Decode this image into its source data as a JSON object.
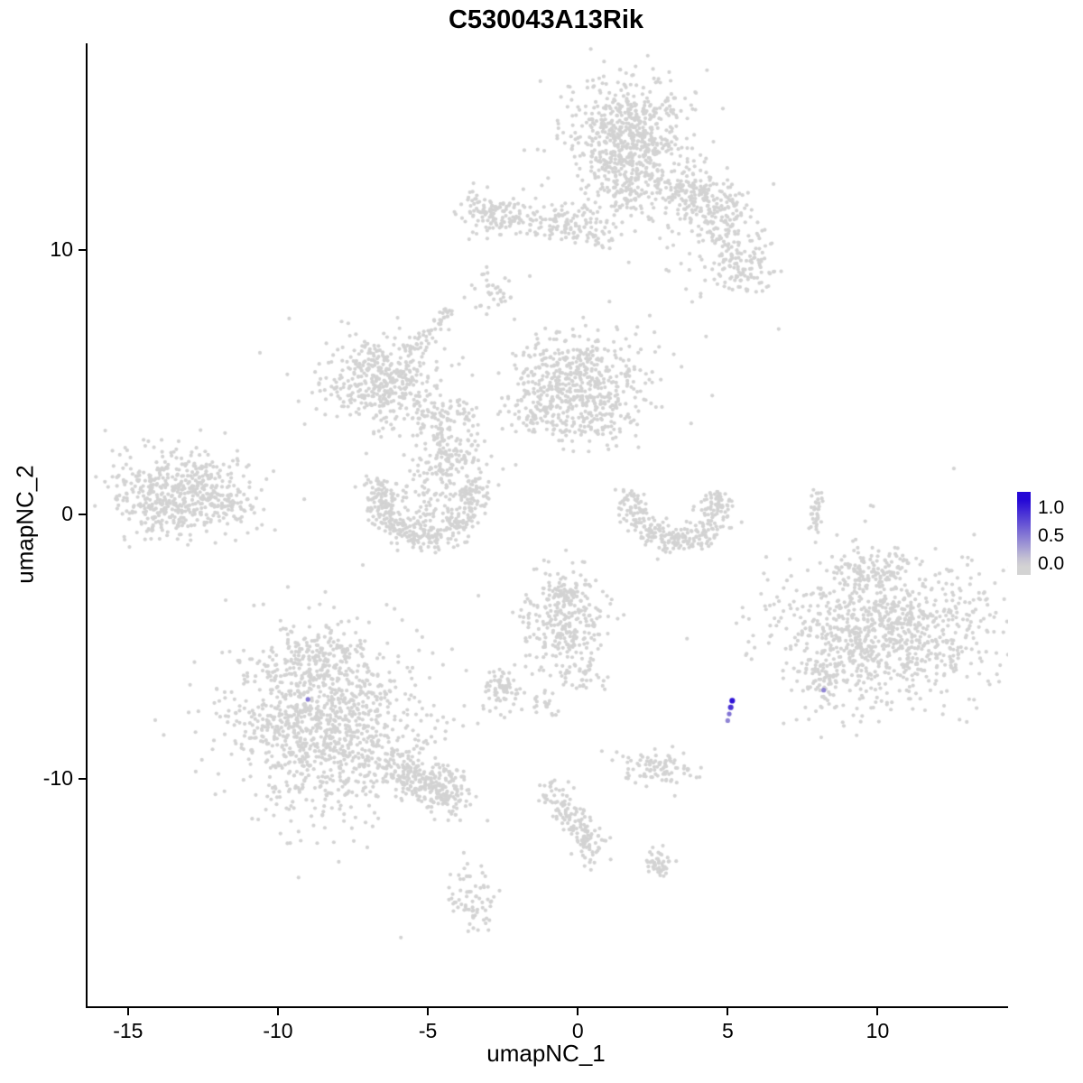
{
  "chart_data": {
    "type": "scatter",
    "title": "C530043A13Rik",
    "xlabel": "umapNC_1",
    "ylabel": "umapNC_2",
    "xlim": [
      -16.35,
      14.35
    ],
    "ylim": [
      -18.6,
      17.8
    ],
    "x_ticks": [
      -15,
      -10,
      -5,
      0,
      5,
      10
    ],
    "y_ticks": [
      -10,
      0,
      10
    ],
    "grid": false,
    "legend": {
      "position": "right",
      "tick_labels": [
        "1.0",
        "0.5",
        "0.0"
      ],
      "tick_values": [
        1.0,
        0.5,
        0.0
      ],
      "value_range": [
        -0.2,
        1.3
      ],
      "data_max": 1.15
    },
    "colors": {
      "base_point": "#d3d3d3",
      "expression_high": "#2508d6",
      "background": "#ffffff",
      "axis": "#000000"
    },
    "point_radius_px": 2.1,
    "seed": 42,
    "clusters": [
      {
        "type": "gauss",
        "cx": 1.7,
        "cy": 14.1,
        "sx": 0.85,
        "sy": 1.05,
        "n": 550
      },
      {
        "type": "gauss",
        "cx": 1.7,
        "cy": 13.9,
        "sx": 1.35,
        "sy": 1.5,
        "n": 150
      },
      {
        "type": "gauss",
        "cx": 1.9,
        "cy": 12.1,
        "sx": 0.55,
        "sy": 0.45,
        "n": 60
      },
      {
        "type": "gauss",
        "cx": 3.7,
        "cy": 12.2,
        "sx": 0.55,
        "sy": 0.5,
        "n": 110
      },
      {
        "type": "gauss",
        "cx": 4.9,
        "cy": 11.5,
        "sx": 0.6,
        "sy": 0.55,
        "n": 110
      },
      {
        "type": "gauss",
        "cx": 5.2,
        "cy": 9.5,
        "sx": 0.45,
        "sy": 0.65,
        "n": 90
      },
      {
        "type": "gauss",
        "cx": 4.3,
        "cy": 10.4,
        "sx": 0.85,
        "sy": 0.8,
        "n": 55
      },
      {
        "type": "gauss",
        "cx": 6.0,
        "cy": 9.2,
        "sx": 0.35,
        "sy": 0.4,
        "n": 30
      },
      {
        "type": "line",
        "x0": -3.6,
        "y0": 11.6,
        "x1": 0.9,
        "y1": 10.5,
        "w": 0.35,
        "n": 140
      },
      {
        "type": "gauss",
        "cx": -2.9,
        "cy": 11.3,
        "sx": 0.5,
        "sy": 0.4,
        "n": 70
      },
      {
        "type": "gauss",
        "cx": 0.1,
        "cy": 11.1,
        "sx": 0.6,
        "sy": 0.4,
        "n": 60
      },
      {
        "type": "gauss",
        "cx": -2.8,
        "cy": 8.6,
        "sx": 0.3,
        "sy": 0.5,
        "n": 35
      },
      {
        "type": "gauss",
        "cx": -6.6,
        "cy": 5.0,
        "sx": 0.85,
        "sy": 0.8,
        "n": 320
      },
      {
        "type": "gauss",
        "cx": -6.5,
        "cy": 5.1,
        "sx": 1.4,
        "sy": 1.2,
        "n": 90
      },
      {
        "type": "line",
        "x0": -5.6,
        "y0": 6.0,
        "x1": -4.3,
        "y1": 7.6,
        "w": 0.22,
        "n": 55
      },
      {
        "type": "line",
        "x0": -3.9,
        "y0": 4.5,
        "x1": -3.5,
        "y1": 3.0,
        "w": 0.15,
        "n": 25
      },
      {
        "type": "gauss",
        "cx": 0.0,
        "cy": 5.1,
        "sx": 1.0,
        "sy": 0.85,
        "n": 380
      },
      {
        "type": "gauss",
        "cx": 0.0,
        "cy": 5.0,
        "sx": 1.6,
        "sy": 1.3,
        "n": 100
      },
      {
        "type": "gauss",
        "cx": -1.3,
        "cy": 3.9,
        "sx": 0.5,
        "sy": 0.5,
        "n": 80
      },
      {
        "type": "gauss",
        "cx": 0.7,
        "cy": 3.4,
        "sx": 0.7,
        "sy": 0.4,
        "n": 70
      },
      {
        "type": "gauss",
        "cx": -4.7,
        "cy": 3.7,
        "sx": 0.45,
        "sy": 0.45,
        "n": 70
      },
      {
        "type": "gauss",
        "cx": -4.5,
        "cy": 1.7,
        "sx": 0.5,
        "sy": 0.55,
        "n": 90
      },
      {
        "type": "line",
        "x0": -4.6,
        "y0": 3.0,
        "x1": -4.5,
        "y1": 2.2,
        "w": 0.18,
        "n": 30
      },
      {
        "type": "gauss",
        "cx": -3.7,
        "cy": 2.2,
        "sx": 0.3,
        "sy": 0.3,
        "n": 30
      },
      {
        "type": "arc",
        "cx": -5.0,
        "cy": 0.85,
        "rx": 1.55,
        "ry": 1.75,
        "a0": 165,
        "a1": 375,
        "w": 0.3,
        "n": 380
      },
      {
        "type": "gauss",
        "cx": -5.0,
        "cy": 0.2,
        "sx": 0.7,
        "sy": 0.5,
        "n": 60
      },
      {
        "type": "gauss",
        "cx": -13.3,
        "cy": 0.8,
        "sx": 1.05,
        "sy": 0.75,
        "n": 420
      },
      {
        "type": "gauss",
        "cx": -13.2,
        "cy": 0.8,
        "sx": 1.55,
        "sy": 1.1,
        "n": 110
      },
      {
        "type": "gauss",
        "cx": -11.6,
        "cy": 0.3,
        "sx": 0.4,
        "sy": 0.3,
        "n": 40
      },
      {
        "type": "arc",
        "cx": 3.3,
        "cy": 0.6,
        "rx": 1.45,
        "ry": 1.6,
        "a0": 170,
        "a1": 370,
        "w": 0.28,
        "n": 300
      },
      {
        "type": "line",
        "x0": 7.9,
        "y0": -0.6,
        "x1": 8.0,
        "y1": 0.8,
        "w": 0.1,
        "n": 35
      },
      {
        "type": "gauss",
        "cx": 10.2,
        "cy": -4.4,
        "sx": 1.7,
        "sy": 1.3,
        "n": 800
      },
      {
        "type": "gauss",
        "cx": 10.3,
        "cy": -4.3,
        "sx": 2.3,
        "sy": 1.8,
        "n": 220
      },
      {
        "type": "gauss",
        "cx": 8.2,
        "cy": -6.3,
        "sx": 0.4,
        "sy": 0.5,
        "n": 50
      },
      {
        "type": "gauss",
        "cx": 9.7,
        "cy": -2.0,
        "sx": 0.5,
        "sy": 0.35,
        "n": 60
      },
      {
        "type": "gauss",
        "cx": -0.5,
        "cy": -4.1,
        "sx": 0.75,
        "sy": 1.0,
        "n": 280
      },
      {
        "type": "line",
        "x0": -0.6,
        "y0": -2.6,
        "x1": -0.2,
        "y1": -3.4,
        "w": 0.2,
        "n": 40
      },
      {
        "type": "gauss",
        "cx": 0.1,
        "cy": -6.0,
        "sx": 0.3,
        "sy": 0.3,
        "n": 30
      },
      {
        "type": "gauss",
        "cx": -2.5,
        "cy": -6.7,
        "sx": 0.35,
        "sy": 0.45,
        "n": 70
      },
      {
        "type": "gauss",
        "cx": -1.1,
        "cy": -7.2,
        "sx": 0.3,
        "sy": 0.3,
        "n": 20
      },
      {
        "type": "gauss",
        "cx": -8.4,
        "cy": -7.9,
        "sx": 1.5,
        "sy": 1.5,
        "n": 900
      },
      {
        "type": "gauss",
        "cx": -8.3,
        "cy": -7.8,
        "sx": 2.1,
        "sy": 2.1,
        "n": 240
      },
      {
        "type": "gauss",
        "cx": -8.8,
        "cy": -5.3,
        "sx": 0.7,
        "sy": 0.5,
        "n": 120
      },
      {
        "type": "line",
        "x0": -6.3,
        "y0": -9.5,
        "x1": -4.4,
        "y1": -10.4,
        "w": 0.45,
        "n": 220
      },
      {
        "type": "gauss",
        "cx": -4.3,
        "cy": -10.6,
        "sx": 0.4,
        "sy": 0.4,
        "n": 60
      },
      {
        "type": "gauss",
        "cx": 2.5,
        "cy": -9.6,
        "sx": 0.6,
        "sy": 0.33,
        "n": 90
      },
      {
        "type": "line",
        "x0": -1.0,
        "y0": -10.3,
        "x1": 0.3,
        "y1": -12.3,
        "w": 0.25,
        "n": 110
      },
      {
        "type": "gauss",
        "cx": 0.4,
        "cy": -12.6,
        "sx": 0.3,
        "sy": 0.3,
        "n": 40
      },
      {
        "type": "line",
        "x0": 2.4,
        "y0": -12.9,
        "x1": 2.9,
        "y1": -13.4,
        "w": 0.18,
        "n": 45
      },
      {
        "type": "gauss",
        "cx": -3.5,
        "cy": -14.6,
        "sx": 0.35,
        "sy": 0.6,
        "n": 70
      }
    ],
    "singles": [
      [
        -10.6,
        6.1
      ],
      [
        6.7,
        7.0
      ],
      [
        -5.9,
        -16.0
      ],
      [
        -1.6,
        9.0
      ]
    ],
    "expressing_points": [
      {
        "x": 5.15,
        "y": -7.05,
        "value": 1.1
      },
      {
        "x": 5.1,
        "y": -7.3,
        "value": 0.9
      },
      {
        "x": 5.05,
        "y": -7.55,
        "value": 0.55
      },
      {
        "x": 5.0,
        "y": -7.8,
        "value": 0.45
      },
      {
        "x": 8.2,
        "y": -6.65,
        "value": 0.45
      },
      {
        "x": -9.0,
        "y": -7.0,
        "value": 0.5
      }
    ]
  }
}
